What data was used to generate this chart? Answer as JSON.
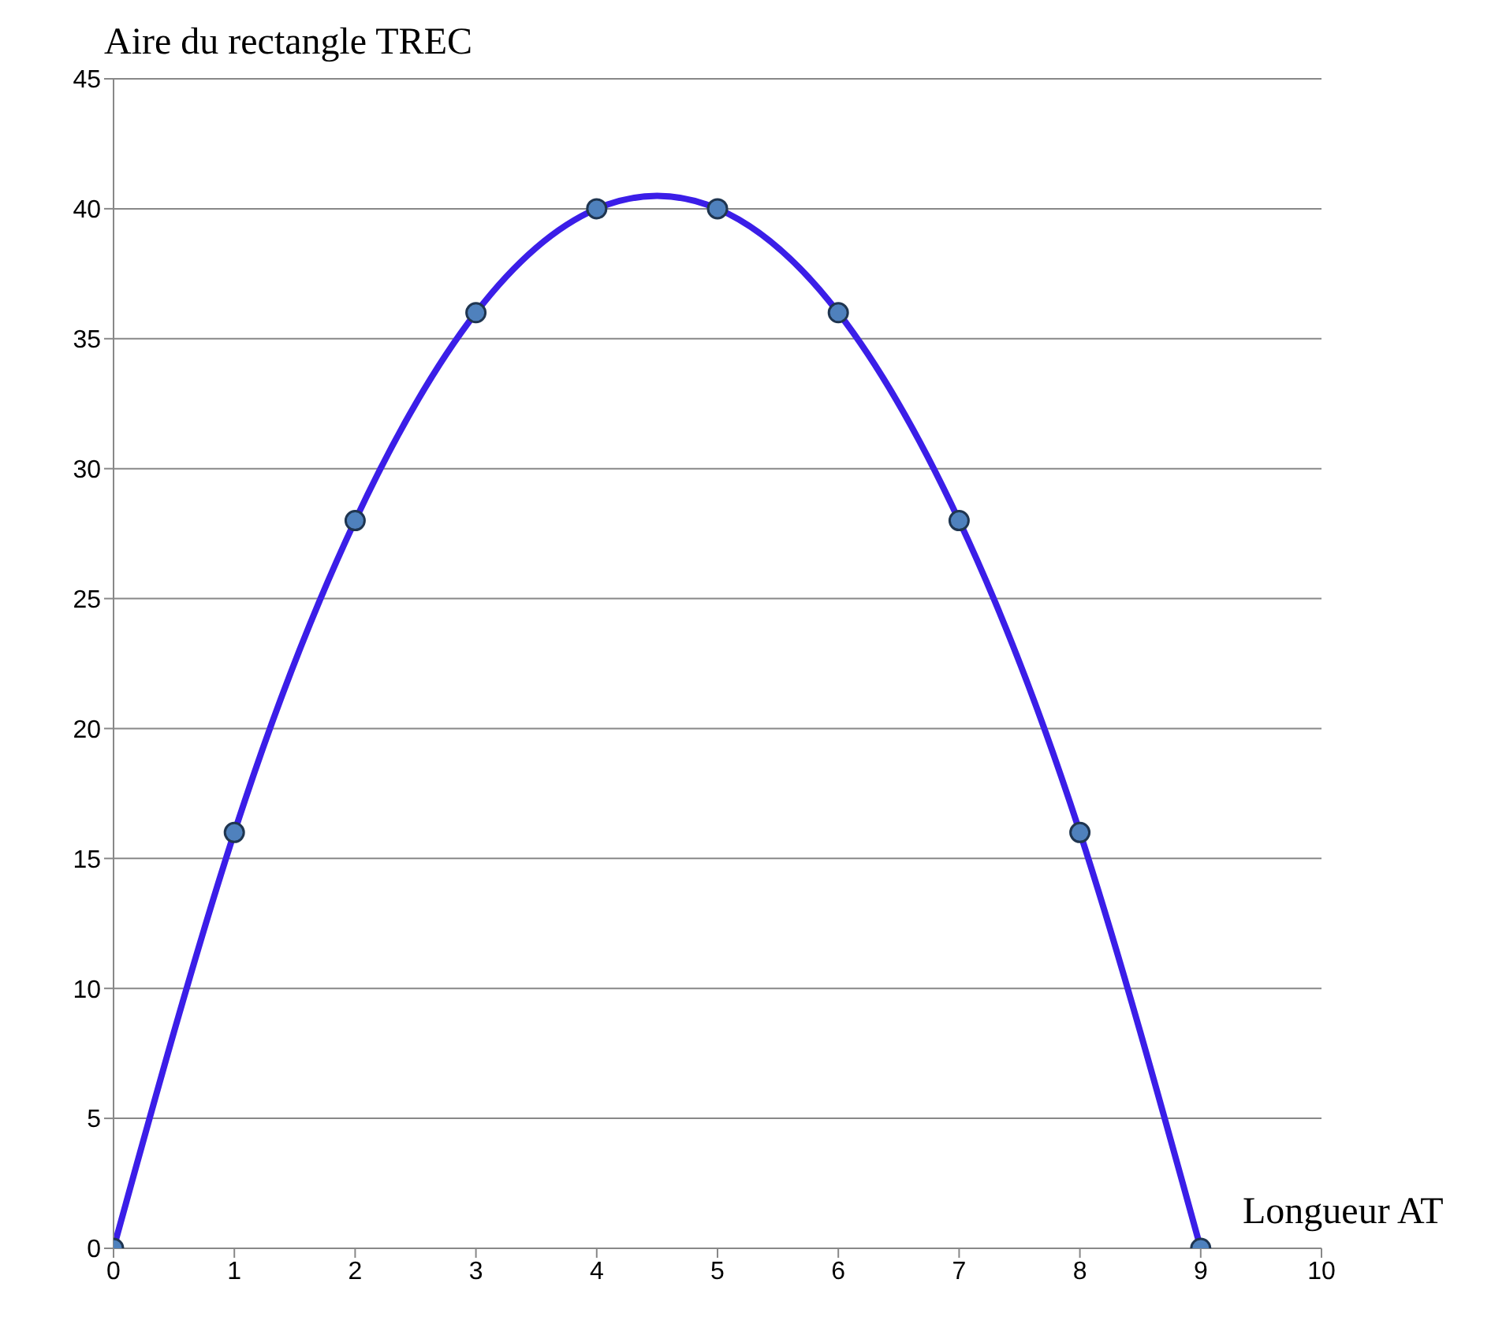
{
  "chart_data": {
    "type": "line",
    "xlabel": "Longueur AT",
    "ylabel": "Aire du rectangle TREC",
    "x": [
      0,
      1,
      2,
      3,
      4,
      5,
      6,
      7,
      8,
      9
    ],
    "series": [
      {
        "color": "#3b1ee8",
        "values": [
          0,
          16,
          28,
          36,
          40,
          40,
          36,
          28,
          16,
          0
        ]
      }
    ],
    "xlim": [
      0,
      10
    ],
    "xticks": [
      0,
      1,
      2,
      3,
      4,
      5,
      6,
      7,
      8,
      9,
      10
    ],
    "ylim": [
      0,
      45
    ],
    "yticks": [
      0,
      5,
      10,
      15,
      20,
      25,
      30,
      35,
      40,
      45
    ],
    "grid": "y",
    "marker": "circle",
    "line_style": "solid"
  }
}
